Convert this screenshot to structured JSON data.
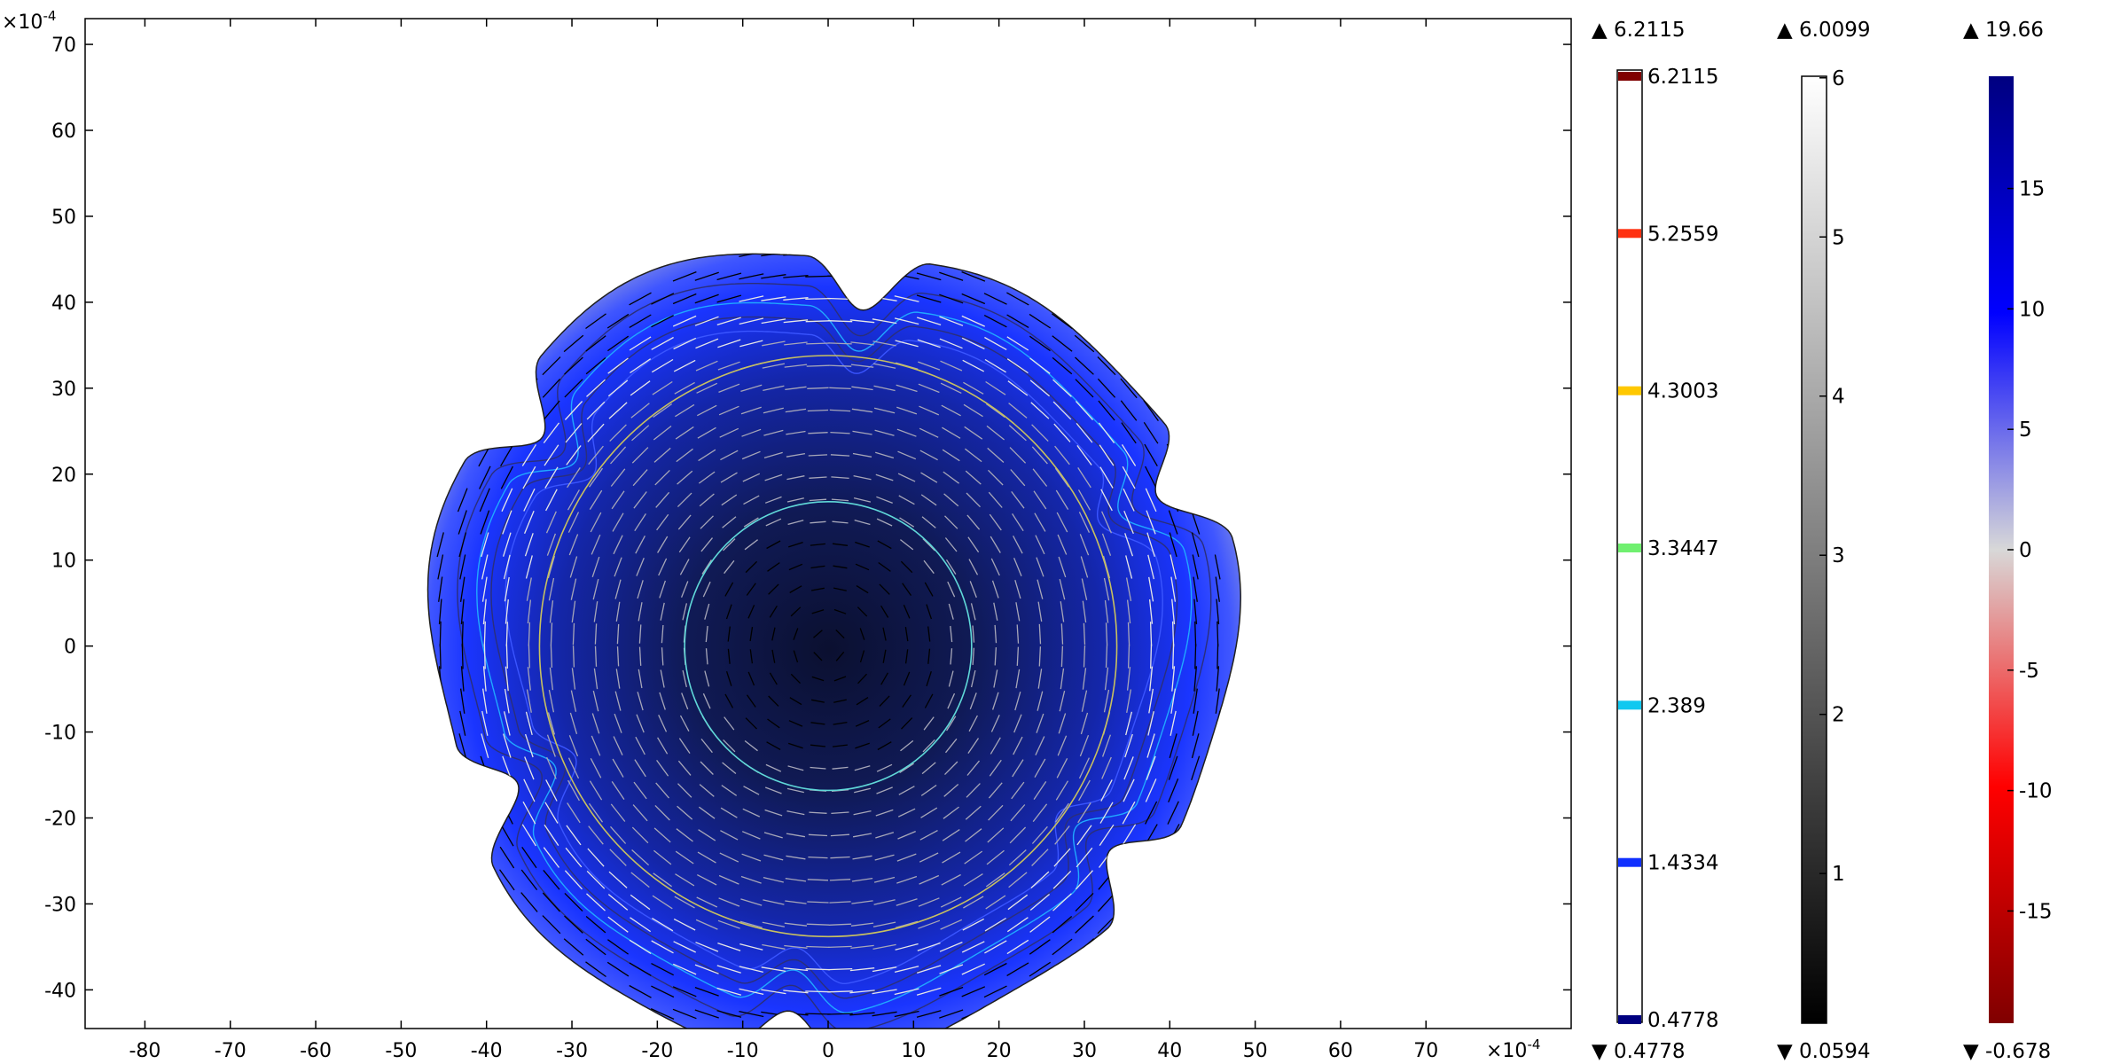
{
  "chart_data": {
    "type": "heatmap",
    "subtype": "2D surface + contour + arrow field (COMSOL-style)",
    "x_axis": {
      "range": [
        -87,
        87
      ],
      "ticks": [
        -80,
        -70,
        -60,
        -50,
        -40,
        -30,
        -20,
        -10,
        0,
        10,
        20,
        30,
        40,
        50,
        60,
        70
      ],
      "multiplier": "×10",
      "multiplier_exp": "-4"
    },
    "y_axis": {
      "range": [
        -44.5,
        73
      ],
      "ticks": [
        -40,
        -30,
        -20,
        -10,
        0,
        10,
        20,
        30,
        40,
        50,
        60,
        70
      ],
      "multiplier": "×10",
      "multiplier_exp": "-4"
    },
    "shape": {
      "center": [
        0,
        0
      ],
      "base_radius": 47,
      "lobes": 6,
      "notch_depth": 6
    },
    "contour_circles": [
      {
        "radius": 16.8,
        "color": "#60d8d8"
      },
      {
        "radius": 33.8,
        "color": "#c8c060"
      }
    ],
    "grid": false,
    "colors": {
      "outer_gray": "#c8c8c8",
      "blue": "#1a35ff",
      "dark_core": "#0d1440",
      "contour_line": "#2b2f7a",
      "arrow_dark": "#000000",
      "arrow_light": "#e6e6e6"
    },
    "legends": [
      {
        "name": "contour",
        "max_marker": "▲ 6.2115",
        "min_marker": "▼ 0.4778",
        "range": [
          0.4778,
          6.2115
        ],
        "levels": [
          {
            "value": 6.2115,
            "label": "6.2115",
            "color": "#800000"
          },
          {
            "value": 5.2559,
            "label": "5.2559",
            "color": "#ff3010"
          },
          {
            "value": 4.3003,
            "label": "4.3003",
            "color": "#ffc800"
          },
          {
            "value": 3.3447,
            "label": "3.3447",
            "color": "#70f070"
          },
          {
            "value": 2.389,
            "label": "2.389",
            "color": "#10c8f0"
          },
          {
            "value": 1.4334,
            "label": "1.4334",
            "color": "#1030ff"
          },
          {
            "value": 0.4778,
            "label": "0.4778",
            "color": "#000080"
          }
        ]
      },
      {
        "name": "gray",
        "max_marker": "▲ 6.0099",
        "min_marker": "▼ 0.0594",
        "range": [
          0.0594,
          6.0099
        ],
        "ticks": [
          {
            "value": 6,
            "label": "6"
          },
          {
            "value": 5,
            "label": "5"
          },
          {
            "value": 4,
            "label": "4"
          },
          {
            "value": 3,
            "label": "3"
          },
          {
            "value": 2,
            "label": "2"
          },
          {
            "value": 1,
            "label": "1"
          }
        ],
        "gradient": [
          "#000000",
          "#ffffff"
        ]
      },
      {
        "name": "bluered",
        "max_marker": "▲ 19.66",
        "min_marker": "▼ -0.678",
        "range": [
          -19.66,
          19.66
        ],
        "ticks": [
          {
            "value": 15,
            "label": "15"
          },
          {
            "value": 10,
            "label": "10"
          },
          {
            "value": 5,
            "label": "5"
          },
          {
            "value": 0,
            "label": "0"
          },
          {
            "value": -5,
            "label": "-5"
          },
          {
            "value": -10,
            "label": "-10"
          },
          {
            "value": -15,
            "label": "-15"
          }
        ],
        "gradient": [
          "#800000",
          "#ff0000",
          "#d8d8d8",
          "#0000ff",
          "#000080"
        ]
      }
    ]
  }
}
